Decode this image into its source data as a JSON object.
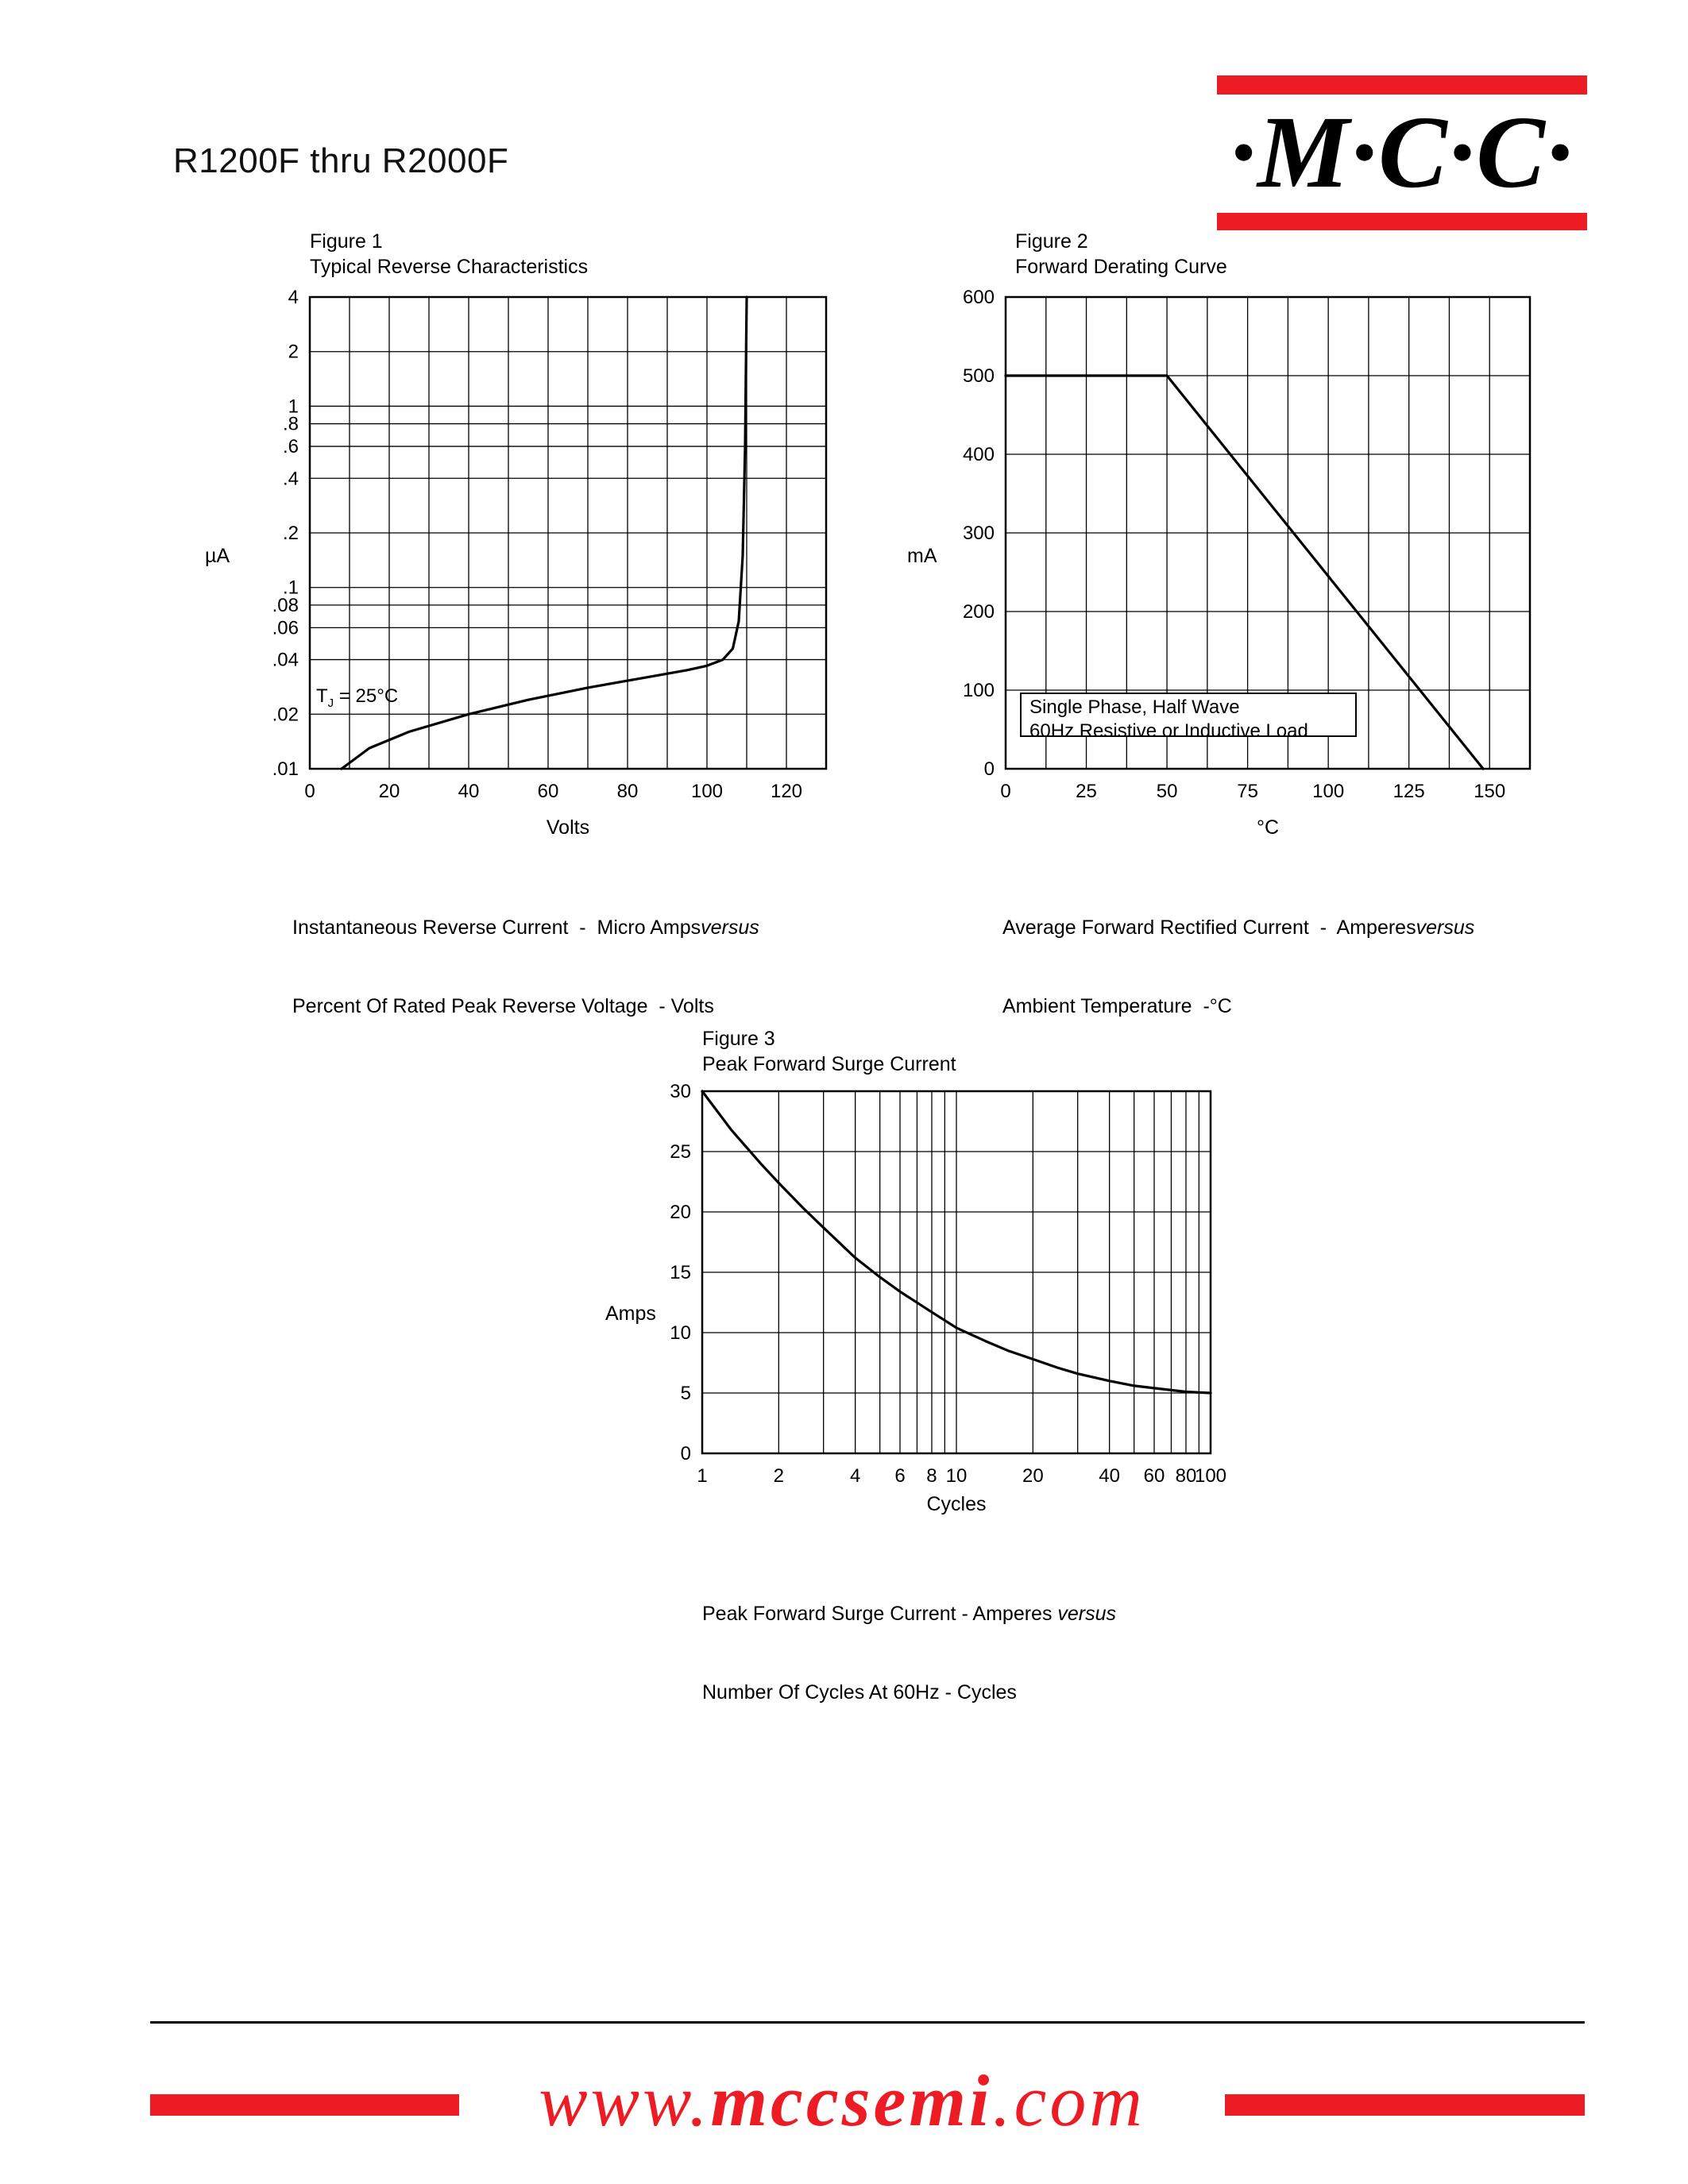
{
  "header": {
    "part_number": "R1200F thru R2000F"
  },
  "logo": {
    "text": "·M·C·C·",
    "bar_color": "#ed1c24"
  },
  "figures": {
    "fig1": {
      "title": "Figure 1",
      "subtitle": "Typical Reverse Characteristics",
      "y_unit": "µA",
      "x_unit": "Volts",
      "annotation": {
        "pre": "T",
        "sub": "J",
        "post": " = 25°C"
      },
      "caption1": "Instantaneous Reverse Current  -  Micro Amps",
      "caption1_italic": "versus",
      "caption2": "Percent Of Rated Peak Reverse Voltage  - Volts"
    },
    "fig2": {
      "title": "Figure 2",
      "subtitle": "Forward Derating Curve",
      "y_unit": "mA",
      "x_unit": "°C",
      "annotation_line1": "Single Phase, Half Wave",
      "annotation_line2": "60Hz Resistive or Inductive Load",
      "caption1": "Average Forward Rectified Current  -  Amperes",
      "caption1_italic": "versus",
      "caption2": "Ambient Temperature  -°C"
    },
    "fig3": {
      "title": "Figure 3",
      "subtitle": "Peak Forward Surge Current",
      "y_unit": "Amps",
      "x_unit": "Cycles",
      "caption1": "Peak Forward Surge Current - Amperes ",
      "caption1_italic": "versus",
      "caption2": "Number Of Cycles At 60Hz - Cycles"
    }
  },
  "footer": {
    "www": "www.",
    "name": "mccsemi",
    "com": ".com"
  },
  "chart_data": [
    {
      "id": "fig1",
      "type": "line",
      "title": "Typical Reverse Characteristics",
      "xlabel": "Percent Of Rated Peak Reverse Voltage - Volts",
      "ylabel": "Instantaneous Reverse Current - Micro Amps (µA)",
      "annotation": "TJ = 25°C",
      "x_axis": {
        "scale": "linear",
        "min": 0,
        "max": 130,
        "grid_values": [
          0,
          10,
          20,
          30,
          40,
          50,
          60,
          70,
          80,
          90,
          100,
          110,
          120,
          130
        ],
        "ticks": [
          {
            "v": 0,
            "t": "0"
          },
          {
            "v": 20,
            "t": "20"
          },
          {
            "v": 40,
            "t": "40"
          },
          {
            "v": 60,
            "t": "60"
          },
          {
            "v": 80,
            "t": "80"
          },
          {
            "v": 100,
            "t": "100"
          },
          {
            "v": 120,
            "t": "120"
          }
        ]
      },
      "y_axis": {
        "scale": "log",
        "min": 0.01,
        "max": 4,
        "grid_values": [
          0.01,
          0.02,
          0.04,
          0.06,
          0.08,
          0.1,
          0.2,
          0.4,
          0.6,
          0.8,
          1,
          2,
          4
        ],
        "ticks": [
          {
            "v": 4,
            "t": "4"
          },
          {
            "v": 2,
            "t": "2"
          },
          {
            "v": 1,
            "t": "1"
          },
          {
            "v": 0.8,
            "t": ".8"
          },
          {
            "v": 0.6,
            "t": ".6"
          },
          {
            "v": 0.4,
            "t": ".4"
          },
          {
            "v": 0.2,
            "t": ".2"
          },
          {
            "v": 0.1,
            "t": ".1"
          },
          {
            "v": 0.08,
            "t": ".08"
          },
          {
            "v": 0.06,
            "t": ".06"
          },
          {
            "v": 0.04,
            "t": ".04"
          },
          {
            "v": 0.02,
            "t": ".02"
          },
          {
            "v": 0.01,
            "t": ".01"
          }
        ]
      },
      "series": [
        {
          "name": "typical-reverse-current",
          "points": [
            [
              8,
              0.01
            ],
            [
              15,
              0.013
            ],
            [
              25,
              0.016
            ],
            [
              40,
              0.02
            ],
            [
              55,
              0.024
            ],
            [
              70,
              0.028
            ],
            [
              85,
              0.032
            ],
            [
              95,
              0.035
            ],
            [
              100,
              0.037
            ],
            [
              104,
              0.04
            ],
            [
              106.5,
              0.046
            ],
            [
              108,
              0.065
            ],
            [
              109,
              0.15
            ],
            [
              109.6,
              0.6
            ],
            [
              110,
              4
            ]
          ]
        }
      ]
    },
    {
      "id": "fig2",
      "type": "line",
      "title": "Forward Derating Curve",
      "xlabel": "Ambient Temperature - °C",
      "ylabel": "Average Forward Rectified Current - mA",
      "annotation": "Single Phase, Half Wave 60Hz Resistive or Inductive Load",
      "x_axis": {
        "scale": "linear",
        "min": 0,
        "max": 162.5,
        "grid_values": [
          0,
          12.5,
          25,
          37.5,
          50,
          62.5,
          75,
          87.5,
          100,
          112.5,
          125,
          137.5,
          150,
          162.5
        ],
        "ticks": [
          {
            "v": 0,
            "t": "0"
          },
          {
            "v": 25,
            "t": "25"
          },
          {
            "v": 50,
            "t": "50"
          },
          {
            "v": 75,
            "t": "75"
          },
          {
            "v": 100,
            "t": "100"
          },
          {
            "v": 125,
            "t": "125"
          },
          {
            "v": 150,
            "t": "150"
          }
        ]
      },
      "y_axis": {
        "scale": "linear",
        "min": 0,
        "max": 600,
        "grid_values": [
          0,
          100,
          200,
          300,
          400,
          500,
          600
        ],
        "ticks": [
          {
            "v": 600,
            "t": "600"
          },
          {
            "v": 500,
            "t": "500"
          },
          {
            "v": 400,
            "t": "400"
          },
          {
            "v": 300,
            "t": "300"
          },
          {
            "v": 200,
            "t": "200"
          },
          {
            "v": 100,
            "t": "100"
          },
          {
            "v": 0,
            "t": "0"
          }
        ]
      },
      "series": [
        {
          "name": "forward-derating",
          "points": [
            [
              0,
              500
            ],
            [
              50,
              500
            ],
            [
              148,
              0
            ]
          ]
        }
      ]
    },
    {
      "id": "fig3",
      "type": "line",
      "title": "Peak Forward Surge Current",
      "xlabel": "Number Of Cycles At 60Hz - Cycles",
      "ylabel": "Peak Forward Surge Current - Amperes",
      "x_axis": {
        "scale": "log",
        "min": 1,
        "max": 100,
        "grid_values": [
          1,
          2,
          3,
          4,
          5,
          6,
          7,
          8,
          9,
          10,
          20,
          30,
          40,
          50,
          60,
          70,
          80,
          90,
          100
        ],
        "ticks": [
          {
            "v": 1,
            "t": "1"
          },
          {
            "v": 2,
            "t": "2"
          },
          {
            "v": 4,
            "t": "4"
          },
          {
            "v": 6,
            "t": "6"
          },
          {
            "v": 8,
            "t": "8"
          },
          {
            "v": 10,
            "t": "10"
          },
          {
            "v": 20,
            "t": "20"
          },
          {
            "v": 40,
            "t": "40"
          },
          {
            "v": 60,
            "t": "60"
          },
          {
            "v": 80,
            "t": "80"
          },
          {
            "v": 100,
            "t": "100"
          }
        ]
      },
      "y_axis": {
        "scale": "linear",
        "min": 0,
        "max": 30,
        "grid_values": [
          0,
          5,
          10,
          15,
          20,
          25,
          30
        ],
        "ticks": [
          {
            "v": 30,
            "t": "30"
          },
          {
            "v": 25,
            "t": "25"
          },
          {
            "v": 20,
            "t": "20"
          },
          {
            "v": 15,
            "t": "15"
          },
          {
            "v": 10,
            "t": "10"
          },
          {
            "v": 5,
            "t": "5"
          },
          {
            "v": 0,
            "t": "0"
          }
        ]
      },
      "series": [
        {
          "name": "peak-surge-current",
          "points": [
            [
              1,
              30
            ],
            [
              1.3,
              26.8
            ],
            [
              1.7,
              24
            ],
            [
              2,
              22.4
            ],
            [
              2.5,
              20.3
            ],
            [
              3,
              18.7
            ],
            [
              4,
              16.2
            ],
            [
              5,
              14.6
            ],
            [
              6,
              13.4
            ],
            [
              8,
              11.7
            ],
            [
              10,
              10.4
            ],
            [
              13,
              9.3
            ],
            [
              16,
              8.5
            ],
            [
              20,
              7.8
            ],
            [
              25,
              7.1
            ],
            [
              30,
              6.6
            ],
            [
              40,
              6.0
            ],
            [
              50,
              5.6
            ],
            [
              60,
              5.4
            ],
            [
              80,
              5.1
            ],
            [
              100,
              5.0
            ]
          ]
        }
      ]
    }
  ]
}
